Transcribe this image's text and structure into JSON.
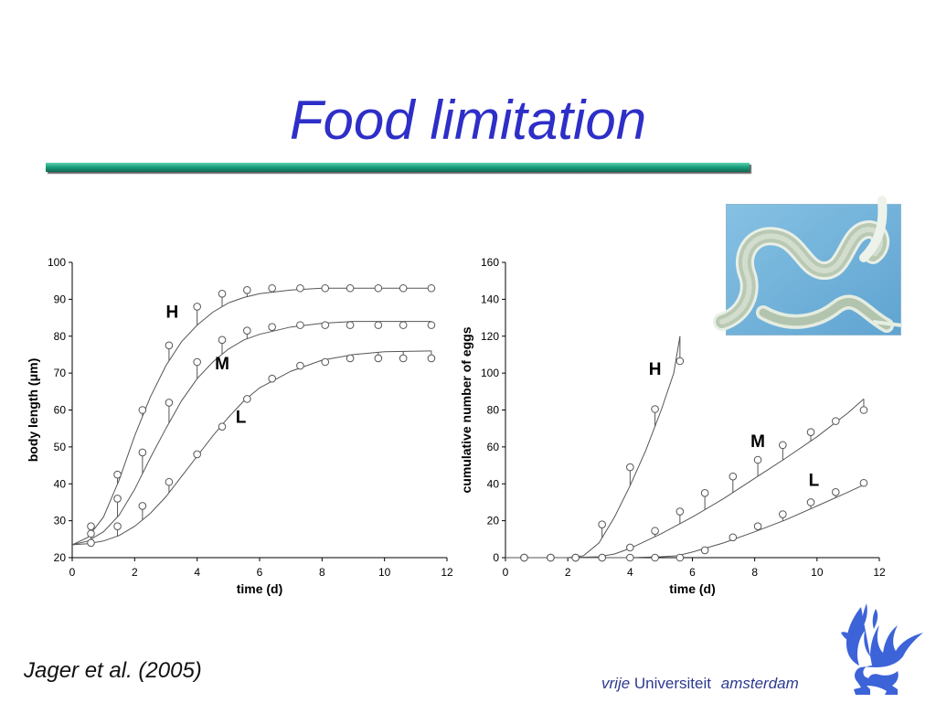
{
  "slide": {
    "title": "Food limitation",
    "citation": "Jager et al. (2005)",
    "university": {
      "vrije": "vrije",
      "universiteit": "Universiteit",
      "amsterdam": "amsterdam"
    }
  },
  "colors": {
    "title": "#2e2ec8",
    "title_bar": "#1aa07e",
    "university": "#2c3a90",
    "logo": "#3d63d8",
    "photo_bg": "#7ab8dc"
  },
  "icons": {
    "logo": "griffin-icon",
    "photo": "nematode-photo"
  },
  "chart_data": [
    {
      "id": "body-length",
      "type": "line",
      "xlabel": "time (d)",
      "ylabel": "body length (μm)",
      "xlim": [
        0,
        12
      ],
      "ylim": [
        20,
        100
      ],
      "xticks": [
        "0",
        "2",
        "4",
        "6",
        "8",
        "10",
        "12"
      ],
      "yticks": [
        "20",
        "30",
        "40",
        "50",
        "60",
        "70",
        "80",
        "90",
        "100"
      ],
      "grid": false,
      "series": [
        {
          "name": "H",
          "label_at": [
            3.2,
            85
          ],
          "points": [
            [
              0.6,
              28.5
            ],
            [
              1.45,
              42.5
            ],
            [
              2.25,
              60
            ],
            [
              3.1,
              77.5
            ],
            [
              4.0,
              88
            ],
            [
              4.8,
              91.5
            ],
            [
              5.6,
              92.5
            ],
            [
              6.4,
              93
            ],
            [
              7.3,
              93
            ],
            [
              8.1,
              93
            ],
            [
              8.9,
              93
            ],
            [
              9.8,
              93
            ],
            [
              10.6,
              93
            ],
            [
              11.5,
              93
            ]
          ],
          "curve": [
            [
              0,
              23.5
            ],
            [
              0.5,
              25.5
            ],
            [
              1,
              31
            ],
            [
              1.5,
              41
            ],
            [
              2,
              53
            ],
            [
              2.5,
              63.5
            ],
            [
              3,
              72
            ],
            [
              3.5,
              78.5
            ],
            [
              4,
              83
            ],
            [
              4.5,
              86.5
            ],
            [
              5,
              89
            ],
            [
              5.5,
              90.5
            ],
            [
              6,
              91.5
            ],
            [
              7,
              92.5
            ],
            [
              8,
              93
            ],
            [
              9,
              93
            ],
            [
              10,
              93
            ],
            [
              11.5,
              93
            ]
          ]
        },
        {
          "name": "M",
          "label_at": [
            4.8,
            71
          ],
          "points": [
            [
              0.6,
              26.5
            ],
            [
              1.45,
              36
            ],
            [
              2.25,
              48.5
            ],
            [
              3.1,
              62
            ],
            [
              4.0,
              73
            ],
            [
              4.8,
              79
            ],
            [
              5.6,
              81.5
            ],
            [
              6.4,
              82.5
            ],
            [
              7.3,
              83
            ],
            [
              8.1,
              83
            ],
            [
              8.9,
              83
            ],
            [
              9.8,
              83
            ],
            [
              10.6,
              83
            ],
            [
              11.5,
              83
            ]
          ],
          "curve": [
            [
              0,
              23.5
            ],
            [
              0.5,
              24.5
            ],
            [
              1,
              27
            ],
            [
              1.5,
              31.5
            ],
            [
              2,
              38.5
            ],
            [
              2.5,
              47
            ],
            [
              3,
              55
            ],
            [
              3.5,
              62.5
            ],
            [
              4,
              68.5
            ],
            [
              4.5,
              73
            ],
            [
              5,
              76.5
            ],
            [
              5.5,
              79
            ],
            [
              6,
              80.5
            ],
            [
              7,
              82.5
            ],
            [
              8,
              83.5
            ],
            [
              9,
              84
            ],
            [
              10,
              84
            ],
            [
              11.5,
              84
            ]
          ]
        },
        {
          "name": "L",
          "label_at": [
            5.4,
            56.5
          ],
          "points": [
            [
              0.6,
              24
            ],
            [
              1.45,
              28.5
            ],
            [
              2.25,
              34
            ],
            [
              3.1,
              40.5
            ],
            [
              4.0,
              48
            ],
            [
              4.8,
              55.5
            ],
            [
              5.6,
              63
            ],
            [
              6.4,
              68.5
            ],
            [
              7.3,
              72
            ],
            [
              8.1,
              73
            ],
            [
              8.9,
              74
            ],
            [
              9.8,
              74
            ],
            [
              10.6,
              74
            ],
            [
              11.5,
              74
            ]
          ],
          "curve": [
            [
              0,
              23.5
            ],
            [
              0.5,
              23.8
            ],
            [
              1,
              24.5
            ],
            [
              1.5,
              26
            ],
            [
              2,
              28.5
            ],
            [
              2.5,
              32
            ],
            [
              3,
              36.5
            ],
            [
              3.5,
              42
            ],
            [
              4,
              47.5
            ],
            [
              4.5,
              53
            ],
            [
              5,
              58
            ],
            [
              5.5,
              62.5
            ],
            [
              6,
              66
            ],
            [
              7,
              70.5
            ],
            [
              8,
              73.5
            ],
            [
              9,
              75
            ],
            [
              10,
              75.8
            ],
            [
              11.5,
              76
            ]
          ]
        }
      ]
    },
    {
      "id": "cumulative-eggs",
      "type": "line",
      "xlabel": "time (d)",
      "ylabel": "cumulative number of eggs",
      "xlim": [
        0,
        12
      ],
      "ylim": [
        0,
        160
      ],
      "xticks": [
        "0",
        "2",
        "4",
        "6",
        "8",
        "10",
        "12"
      ],
      "yticks": [
        "0",
        "20",
        "40",
        "60",
        "80",
        "100",
        "120",
        "140",
        "160"
      ],
      "grid": false,
      "series": [
        {
          "name": "H",
          "label_at": [
            4.8,
            99
          ],
          "points": [
            [
              0.6,
              0
            ],
            [
              1.45,
              0
            ],
            [
              2.25,
              0
            ],
            [
              3.1,
              18
            ],
            [
              4.0,
              49
            ],
            [
              4.8,
              80.5
            ],
            [
              5.6,
              106.5
            ]
          ],
          "curve": [
            [
              0,
              0
            ],
            [
              1,
              0
            ],
            [
              2,
              0
            ],
            [
              2.5,
              1
            ],
            [
              3,
              8
            ],
            [
              3.5,
              22
            ],
            [
              4,
              39
            ],
            [
              4.5,
              58
            ],
            [
              5,
              80
            ],
            [
              5.4,
              100
            ],
            [
              5.6,
              120
            ]
          ]
        },
        {
          "name": "M",
          "label_at": [
            8.1,
            60
          ],
          "points": [
            [
              0.6,
              0
            ],
            [
              1.45,
              0
            ],
            [
              2.25,
              0
            ],
            [
              3.1,
              0
            ],
            [
              4.0,
              5.5
            ],
            [
              4.8,
              14.5
            ],
            [
              5.6,
              25
            ],
            [
              6.4,
              35
            ],
            [
              7.3,
              44
            ],
            [
              8.1,
              53
            ],
            [
              8.9,
              61
            ],
            [
              9.8,
              68
            ],
            [
              10.6,
              74
            ],
            [
              11.5,
              80
            ]
          ],
          "curve": [
            [
              0,
              0
            ],
            [
              2,
              0
            ],
            [
              3,
              0.5
            ],
            [
              3.5,
              2
            ],
            [
              4,
              5
            ],
            [
              5,
              13
            ],
            [
              6,
              22
            ],
            [
              7,
              32
            ],
            [
              8,
              43
            ],
            [
              9,
              54
            ],
            [
              10,
              65.5
            ],
            [
              11,
              78.5
            ],
            [
              11.5,
              86
            ]
          ]
        },
        {
          "name": "L",
          "label_at": [
            9.9,
            39
          ],
          "points": [
            [
              0.6,
              0
            ],
            [
              1.45,
              0
            ],
            [
              2.25,
              0
            ],
            [
              3.1,
              0
            ],
            [
              4.0,
              0
            ],
            [
              4.8,
              0
            ],
            [
              5.6,
              0
            ],
            [
              6.4,
              4
            ],
            [
              7.3,
              11
            ],
            [
              8.1,
              17
            ],
            [
              8.9,
              23.5
            ],
            [
              9.8,
              30
            ],
            [
              10.6,
              35.5
            ],
            [
              11.5,
              40.5
            ]
          ],
          "curve": [
            [
              0,
              0
            ],
            [
              4,
              0
            ],
            [
              5,
              0.5
            ],
            [
              5.5,
              1
            ],
            [
              6,
              3
            ],
            [
              7,
              8
            ],
            [
              8,
              14
            ],
            [
              9,
              20.5
            ],
            [
              10,
              28
            ],
            [
              11,
              35.5
            ],
            [
              11.5,
              39.5
            ]
          ]
        }
      ]
    }
  ]
}
